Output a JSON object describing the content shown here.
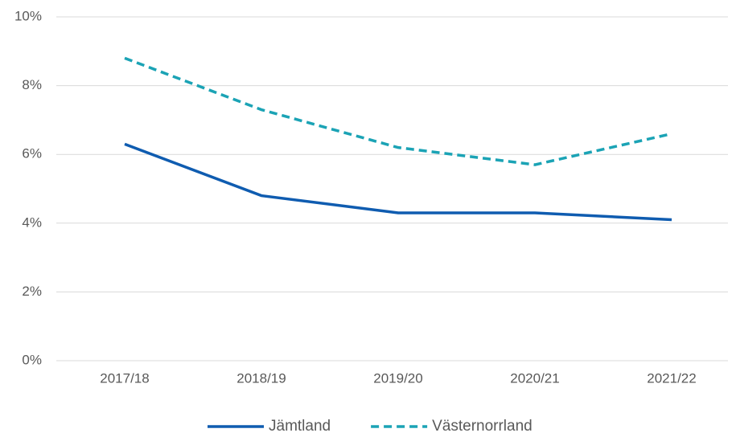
{
  "chart_data": {
    "type": "line",
    "categories": [
      "2017/18",
      "2018/19",
      "2019/20",
      "2020/21",
      "2021/22"
    ],
    "series": [
      {
        "name": "Jämtland",
        "color": "#0f5cb0",
        "line_style": "solid",
        "values": [
          6.3,
          4.8,
          4.3,
          4.3,
          4.1
        ]
      },
      {
        "name": "Västernorrland",
        "color": "#1ba3b5",
        "line_style": "dashed",
        "values": [
          8.8,
          7.3,
          6.2,
          5.7,
          6.6
        ]
      }
    ],
    "ylim": [
      0,
      10
    ],
    "yticks": [
      {
        "value": 0,
        "label": "0%"
      },
      {
        "value": 2,
        "label": "2%"
      },
      {
        "value": 4,
        "label": "4%"
      },
      {
        "value": 6,
        "label": "6%"
      },
      {
        "value": 8,
        "label": "8%"
      },
      {
        "value": 10,
        "label": "10%"
      }
    ],
    "grid": true,
    "legend": "bottom"
  }
}
